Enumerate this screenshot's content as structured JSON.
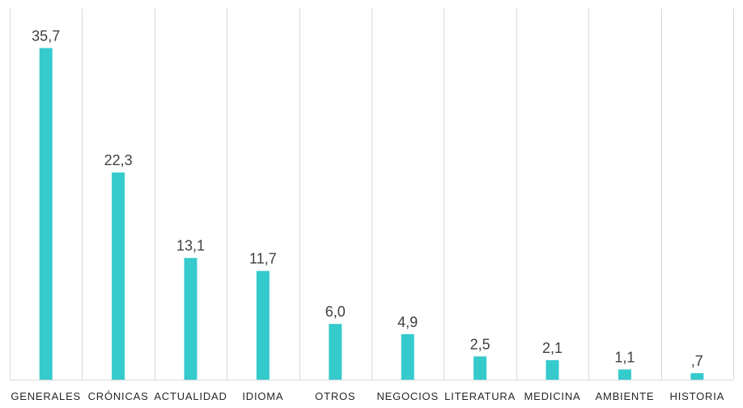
{
  "chart_data": {
    "type": "bar",
    "title": "",
    "xlabel": "",
    "ylabel": "",
    "categories": [
      "GENERALES",
      "CRÓNICAS",
      "ACTUALIDAD",
      "IDIOMA",
      "OTROS",
      "NEGOCIOS",
      "LITERATURA",
      "MEDICINA",
      "AMBIENTE",
      "HISTORIA"
    ],
    "values": [
      35.7,
      22.3,
      13.1,
      11.7,
      6.0,
      4.9,
      2.5,
      2.1,
      1.1,
      0.7
    ],
    "value_labels": [
      "35,7",
      "22,3",
      "13,1",
      "11,7",
      "6,0",
      "4,9",
      "2,5",
      "2,1",
      "1,1",
      ",7"
    ],
    "ylim": [
      0,
      40
    ],
    "grid": "vertical-category-dividers",
    "legend": "none",
    "colors": {
      "bar": "#35CACC",
      "gridline": "#D9D9D9",
      "text": "#404040"
    }
  }
}
